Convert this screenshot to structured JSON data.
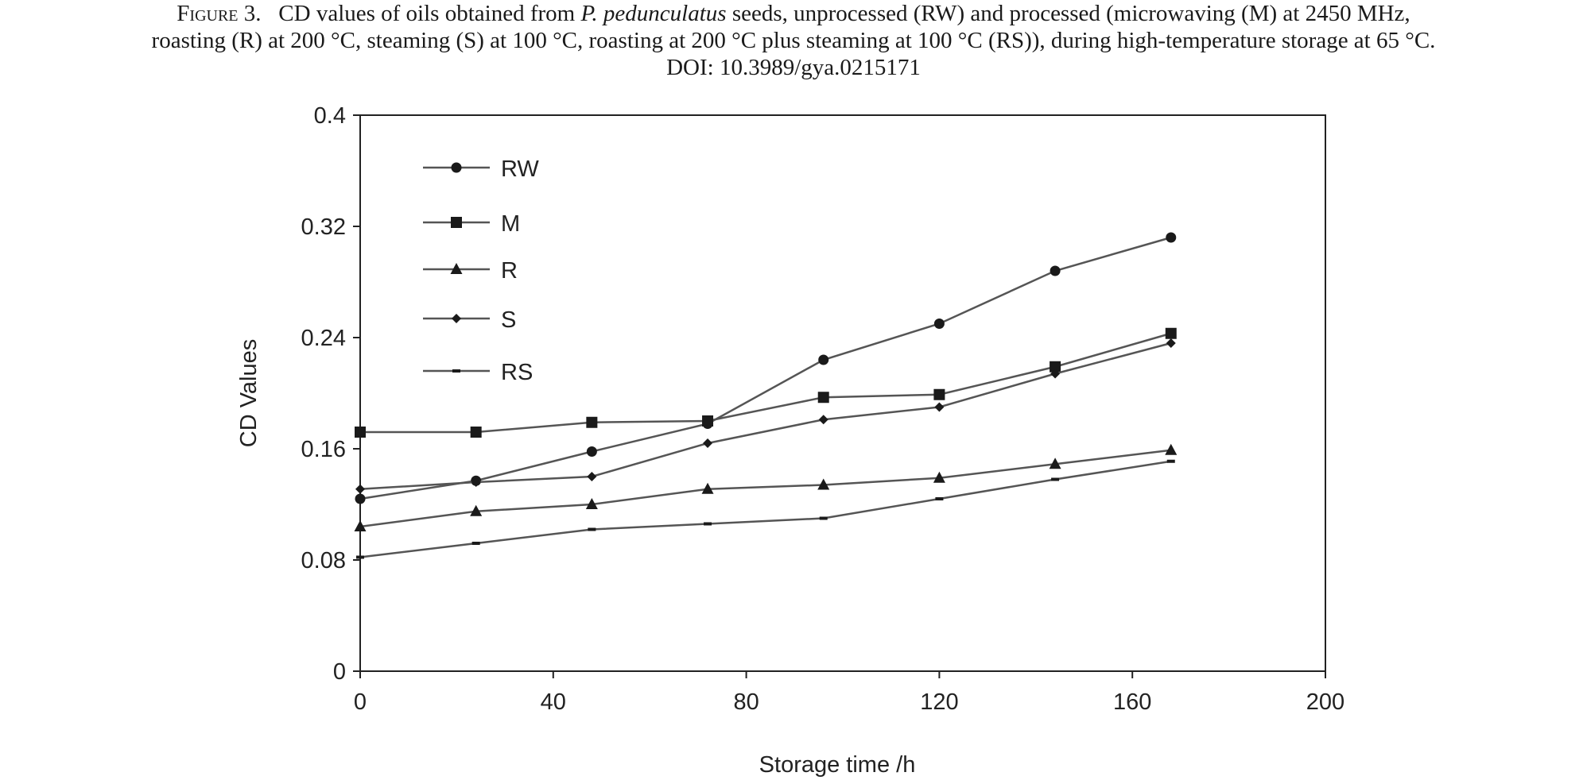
{
  "caption": {
    "line1_prefix": "Figure 3.",
    "line1_a": "CD values of oils obtained from ",
    "line1_species": "P. pedunculatus",
    "line1_b": " seeds, unprocessed (RW) and processed (microwaving (M) at 2450 MHz,",
    "line2": "roasting (R) at 200 °C, steaming (S) at 100 °C, roasting at 200 °C plus steaming at 100 °C (RS)), during high-temperature storage at 65 °C.",
    "line3": "DOI: 10.3989/gya.0215171"
  },
  "chart_data": {
    "type": "line",
    "title": "",
    "xlabel": "Storage time /h",
    "ylabel": "CD Values",
    "xlim": [
      0,
      200
    ],
    "ylim": [
      0,
      0.4
    ],
    "xticks": [
      0,
      40,
      80,
      120,
      160,
      200
    ],
    "yticks": [
      0,
      0.08,
      0.16,
      0.24,
      0.32,
      0.4
    ],
    "xtick_labels": [
      "0",
      "40",
      "80",
      "120",
      "160",
      "200"
    ],
    "ytick_labels": [
      "0",
      "0.08",
      "0.16",
      "0.24",
      "0.32",
      "0.4"
    ],
    "x": [
      0,
      24,
      48,
      72,
      96,
      120,
      144,
      168
    ],
    "grid": false,
    "legend_position": "top-left",
    "series": [
      {
        "name": "RW",
        "marker": "circle",
        "values": [
          0.124,
          0.137,
          0.158,
          0.178,
          0.224,
          0.25,
          0.288,
          0.312
        ]
      },
      {
        "name": "M",
        "marker": "square",
        "values": [
          0.172,
          0.172,
          0.179,
          0.18,
          0.197,
          0.199,
          0.219,
          0.243
        ]
      },
      {
        "name": "R",
        "marker": "triangle",
        "values": [
          0.104,
          0.115,
          0.12,
          0.131,
          0.134,
          0.139,
          0.149,
          0.159
        ]
      },
      {
        "name": "S",
        "marker": "diamond",
        "values": [
          0.131,
          0.136,
          0.14,
          0.164,
          0.181,
          0.19,
          0.214,
          0.236
        ]
      },
      {
        "name": "RS",
        "marker": "dash",
        "values": [
          0.082,
          0.092,
          0.102,
          0.106,
          0.11,
          0.124,
          0.138,
          0.151
        ]
      }
    ],
    "colors": {
      "line": "#555555",
      "marker": "#1a1a1a",
      "axis": "#222222"
    }
  }
}
